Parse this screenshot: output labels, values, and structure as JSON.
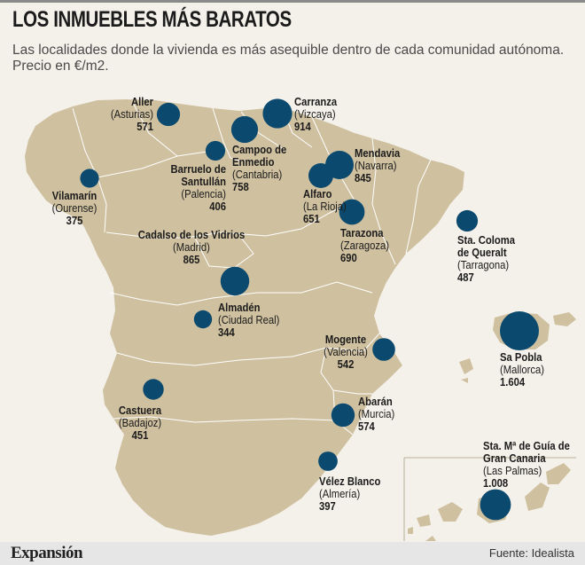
{
  "header": {
    "title": "LOS INMUEBLES  MÁS BARATOS",
    "subtitle": "Las localidades donde la vivienda es más asequible dentro de cada comunidad autónoma. Precio en €/m2."
  },
  "footer": {
    "brand": "Expansión",
    "source": "Fuente: Idealista"
  },
  "colors": {
    "land": "#cfc0a0",
    "bubble": "#0b4a6e",
    "background": "#f4f1ea"
  },
  "locations": [
    {
      "id": "aller",
      "name": "Aller",
      "region": "(Asturias)",
      "price": "571",
      "value": 571
    },
    {
      "id": "carranza",
      "name": "Carranza",
      "region": "(Vizcaya)",
      "price": "914",
      "value": 914
    },
    {
      "id": "campoo",
      "name": "Campoo de Enmedio",
      "region": "(Cantabria)",
      "price": "758",
      "value": 758
    },
    {
      "id": "barruelo",
      "name": "Barruelo de Santullán",
      "region": "(Palencia)",
      "price": "406",
      "value": 406
    },
    {
      "id": "mendavia",
      "name": "Mendavia",
      "region": "(Navarra)",
      "price": "845",
      "value": 845
    },
    {
      "id": "alfaro",
      "name": "Alfaro",
      "region": "(La Rioja)",
      "price": "651",
      "value": 651
    },
    {
      "id": "vilamarin",
      "name": "Vilamarín",
      "region": "(Ourense)",
      "price": "375",
      "value": 375
    },
    {
      "id": "tarazona",
      "name": "Tarazona",
      "region": "(Zaragoza)",
      "price": "690",
      "value": 690
    },
    {
      "id": "stacoloma",
      "name": "Sta. Coloma de Queralt",
      "region": "(Tarragona)",
      "price": "487",
      "value": 487
    },
    {
      "id": "cadalso",
      "name": "Cadalso de los Vidrios",
      "region": "(Madrid)",
      "price": "865",
      "value": 865
    },
    {
      "id": "almaden",
      "name": "Almadén",
      "region": "(Ciudad Real)",
      "price": "344",
      "value": 344
    },
    {
      "id": "sapobla",
      "name": "Sa Pobla",
      "region": "(Mallorca)",
      "price": "1.604",
      "value": 1604
    },
    {
      "id": "mogente",
      "name": "Mogente",
      "region": "(Valencia)",
      "price": "542",
      "value": 542
    },
    {
      "id": "castuera",
      "name": "Castuera",
      "region": "(Badajoz)",
      "price": "451",
      "value": 451
    },
    {
      "id": "abaran",
      "name": "Abarán",
      "region": "(Murcia)",
      "price": "574",
      "value": 574
    },
    {
      "id": "velez",
      "name": "Vélez Blanco",
      "region": "(Almería)",
      "price": "397",
      "value": 397
    },
    {
      "id": "staguia",
      "name": "Sta. Mª de Guía de Gran Canaria",
      "region": "(Las Palmas)",
      "price": "1.008",
      "value": 1008
    }
  ]
}
